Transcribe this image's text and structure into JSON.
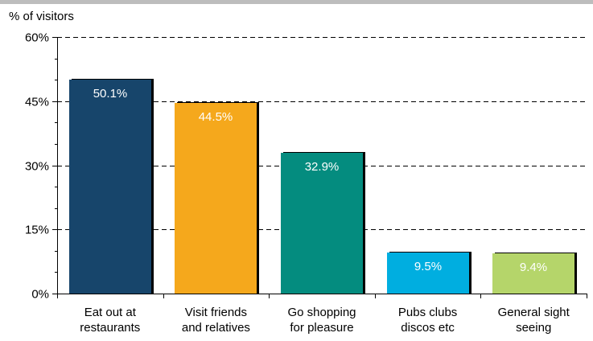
{
  "chart_data": {
    "type": "bar",
    "ylabel": "% of visitors",
    "ylim": [
      0,
      60
    ],
    "yticks": [
      0,
      15,
      30,
      45,
      60
    ],
    "ytick_labels": [
      "0%",
      "15%",
      "30%",
      "45%",
      "60%"
    ],
    "grid": "horizontal-dashed",
    "categories": [
      [
        "Eat out at",
        "restaurants"
      ],
      [
        "Visit friends",
        "and relatives"
      ],
      [
        "Go shopping",
        "for pleasure"
      ],
      [
        "Pubs clubs",
        "discos etc"
      ],
      [
        "General sight",
        "seeing"
      ]
    ],
    "values": [
      50.1,
      44.5,
      32.9,
      9.5,
      9.4
    ],
    "value_labels": [
      "50.1%",
      "44.5%",
      "32.9%",
      "9.5%",
      "9.4%"
    ],
    "colors": [
      "#17456b",
      "#f5a81c",
      "#048c7f",
      "#00aee0",
      "#b5d56a"
    ],
    "shadow_color": "#000000",
    "axis_color": "#000000",
    "grid_color": "#000000",
    "top_rule_color": "#bdbdbd"
  }
}
